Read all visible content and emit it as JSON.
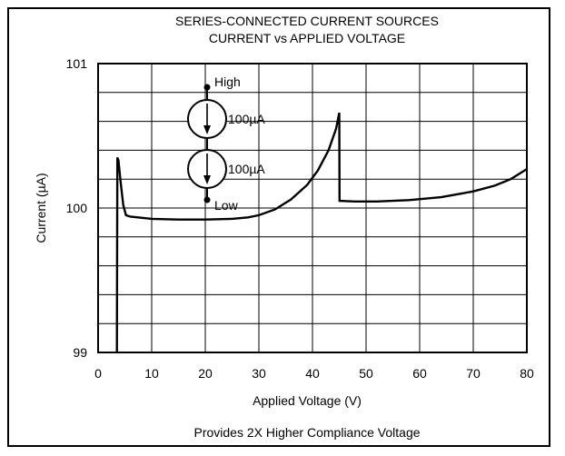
{
  "chart_data": {
    "type": "line",
    "title": "SERIES-CONNECTED CURRENT SOURCES",
    "subtitle": "CURRENT vs APPLIED VOLTAGE",
    "xlabel": "Applied Voltage (V)",
    "ylabel": "Current (µA)",
    "xlim": [
      0,
      80
    ],
    "ylim": [
      99,
      101
    ],
    "x_ticks": [
      "0",
      "10",
      "20",
      "30",
      "40",
      "50",
      "60",
      "70",
      "80"
    ],
    "y_ticks": [
      "99",
      "100",
      "101"
    ],
    "grid": true,
    "series": [
      {
        "points": [
          [
            3.5,
            99.0
          ],
          [
            3.55,
            99.6
          ],
          [
            3.6,
            100.35
          ],
          [
            3.8,
            100.33
          ],
          [
            4.2,
            100.18
          ],
          [
            4.7,
            100.02
          ],
          [
            5.2,
            99.95
          ],
          [
            6,
            99.94
          ],
          [
            10,
            99.925
          ],
          [
            15,
            99.92
          ],
          [
            20,
            99.92
          ],
          [
            25,
            99.925
          ],
          [
            28,
            99.935
          ],
          [
            30,
            99.95
          ],
          [
            33,
            99.99
          ],
          [
            36,
            100.06
          ],
          [
            39,
            100.16
          ],
          [
            41,
            100.26
          ],
          [
            43,
            100.4
          ],
          [
            44.4,
            100.55
          ],
          [
            45,
            100.66
          ],
          [
            45.05,
            100.05
          ],
          [
            48,
            100.045
          ],
          [
            52,
            100.045
          ],
          [
            58,
            100.055
          ],
          [
            64,
            100.075
          ],
          [
            70,
            100.115
          ],
          [
            74,
            100.155
          ],
          [
            77,
            100.2
          ],
          [
            80,
            100.27
          ]
        ]
      }
    ],
    "annotation": "Provides 2X Higher Compliance Voltage",
    "inset": {
      "node_top": "High",
      "node_bottom": "Low",
      "source_1": "100µA",
      "source_2": "100µA"
    }
  }
}
